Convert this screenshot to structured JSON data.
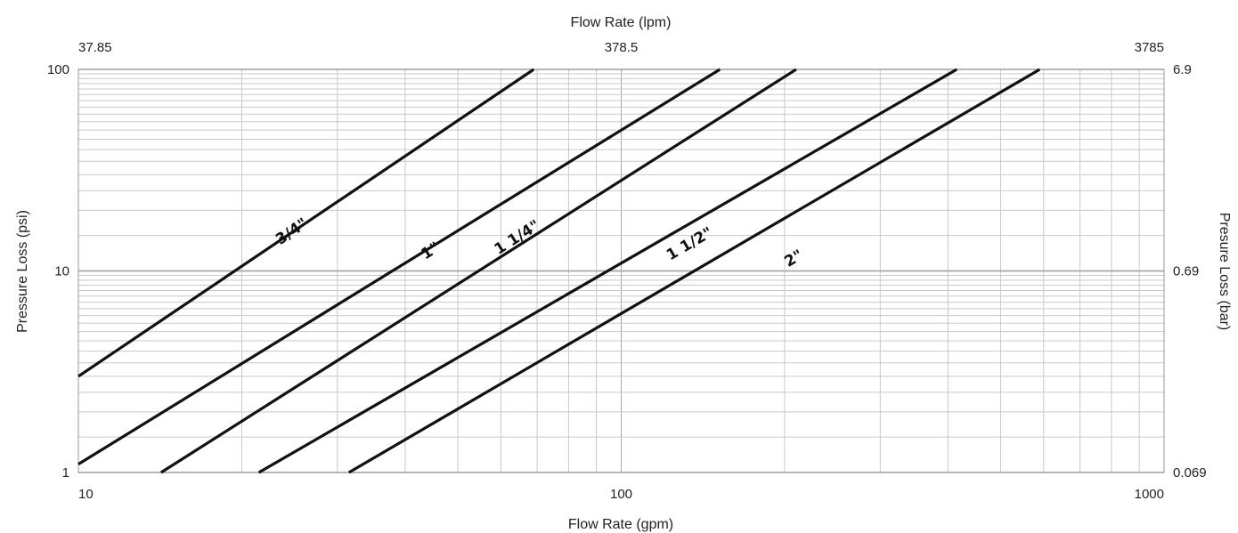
{
  "chart_data": {
    "type": "line",
    "xscale": "log",
    "yscale": "log",
    "grid": true,
    "xlim": [
      10,
      1000
    ],
    "ylim": [
      1,
      100
    ],
    "bottom_axis": {
      "label": "Flow Rate (gpm)",
      "ticks": [
        10,
        100,
        1000
      ],
      "tick_labels": [
        "10",
        "100",
        "1000"
      ]
    },
    "top_axis": {
      "label": "Flow Rate (lpm)",
      "ticks": [
        10,
        100,
        1000
      ],
      "tick_labels": [
        "37.85",
        "378.5",
        "3785"
      ]
    },
    "left_axis": {
      "label": "Pressure Loss (psi)",
      "ticks": [
        1,
        10,
        100
      ],
      "tick_labels": [
        "1",
        "10",
        "100"
      ]
    },
    "right_axis": {
      "label": "Presure Loss (bar)",
      "ticks": [
        1,
        10,
        100
      ],
      "tick_labels": [
        "0.069",
        "0.69",
        "6.9"
      ]
    },
    "series": [
      {
        "name": "3/4\"",
        "x": [
          10,
          69
        ],
        "y": [
          3,
          100
        ],
        "label_at": [
          25,
          15
        ]
      },
      {
        "name": "1\"",
        "x": [
          10,
          152
        ],
        "y": [
          1.1,
          100
        ],
        "label_at": [
          45,
          12
        ]
      },
      {
        "name": "1 1/4\"",
        "x": [
          14.2,
          210
        ],
        "y": [
          1,
          100
        ],
        "label_at": [
          65,
          14
        ]
      },
      {
        "name": "1 1/2\"",
        "x": [
          21.5,
          415
        ],
        "y": [
          1,
          100
        ],
        "label_at": [
          135,
          13
        ]
      },
      {
        "name": "2\"",
        "x": [
          31.5,
          590
        ],
        "y": [
          1,
          100
        ],
        "label_at": [
          210,
          11
        ]
      }
    ],
    "line_color": "#111111",
    "grid_color": "#c9c9c9"
  }
}
